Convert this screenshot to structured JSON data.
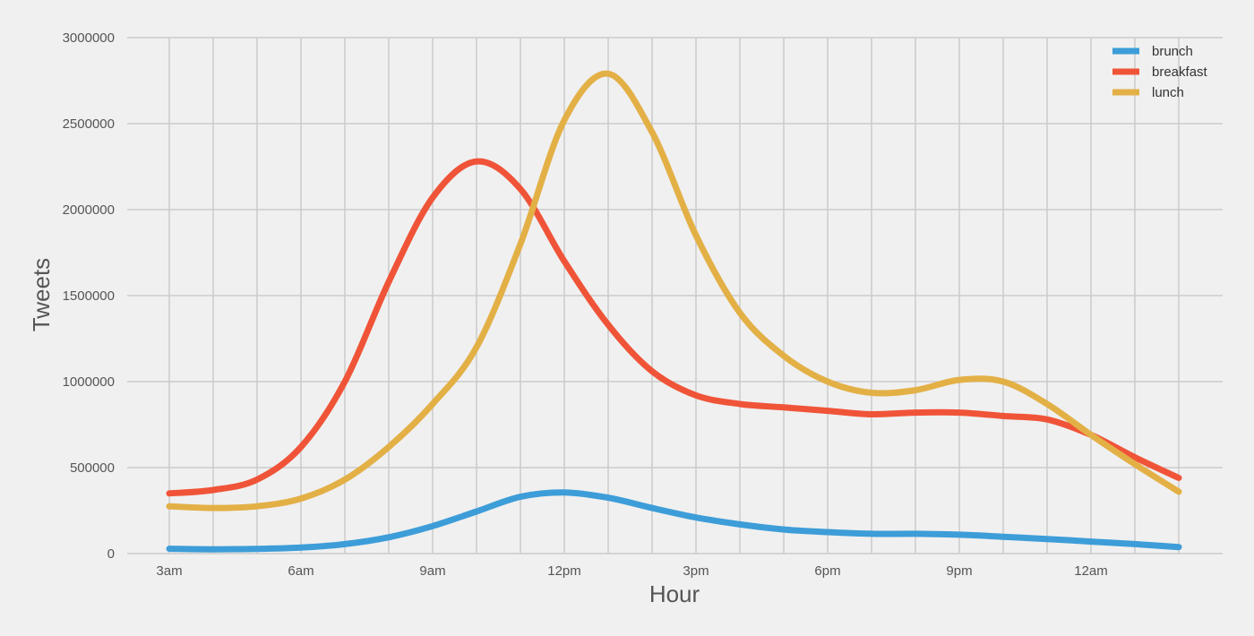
{
  "chart_data": {
    "type": "line",
    "title": "",
    "xlabel": "Hour",
    "ylabel": "Tweets",
    "x": [
      3,
      4,
      5,
      6,
      7,
      8,
      9,
      10,
      11,
      12,
      13,
      14,
      15,
      16,
      17,
      18,
      19,
      20,
      21,
      22,
      23,
      24,
      25,
      26
    ],
    "x_tick_labels": [
      {
        "x": 3,
        "label": "3am"
      },
      {
        "x": 6,
        "label": "6am"
      },
      {
        "x": 9,
        "label": "9am"
      },
      {
        "x": 12,
        "label": "12pm"
      },
      {
        "x": 15,
        "label": "3pm"
      },
      {
        "x": 18,
        "label": "6pm"
      },
      {
        "x": 21,
        "label": "9pm"
      },
      {
        "x": 24,
        "label": "12am"
      }
    ],
    "xlim": [
      3,
      26
    ],
    "ylim": [
      0,
      3000000
    ],
    "y_ticks": [
      0,
      500000,
      1000000,
      1500000,
      2000000,
      2500000,
      3000000
    ],
    "grid": true,
    "legend_position": "top-right",
    "series": [
      {
        "name": "brunch",
        "color": "#3d9dd8",
        "values": [
          28000,
          25000,
          27000,
          35000,
          55000,
          95000,
          160000,
          245000,
          330000,
          355000,
          325000,
          265000,
          210000,
          170000,
          140000,
          125000,
          115000,
          115000,
          110000,
          98000,
          85000,
          70000,
          55000,
          38000
        ]
      },
      {
        "name": "breakfast",
        "color": "#f05438",
        "values": [
          350000,
          370000,
          430000,
          620000,
          1000000,
          1580000,
          2070000,
          2280000,
          2120000,
          1700000,
          1330000,
          1060000,
          920000,
          870000,
          850000,
          830000,
          810000,
          820000,
          820000,
          800000,
          780000,
          690000,
          560000,
          440000
        ]
      },
      {
        "name": "lunch",
        "color": "#e3b046",
        "values": [
          275000,
          265000,
          275000,
          320000,
          430000,
          620000,
          870000,
          1200000,
          1800000,
          2520000,
          2790000,
          2450000,
          1850000,
          1400000,
          1150000,
          1000000,
          935000,
          950000,
          1010000,
          1000000,
          870000,
          690000,
          520000,
          360000
        ]
      }
    ]
  }
}
